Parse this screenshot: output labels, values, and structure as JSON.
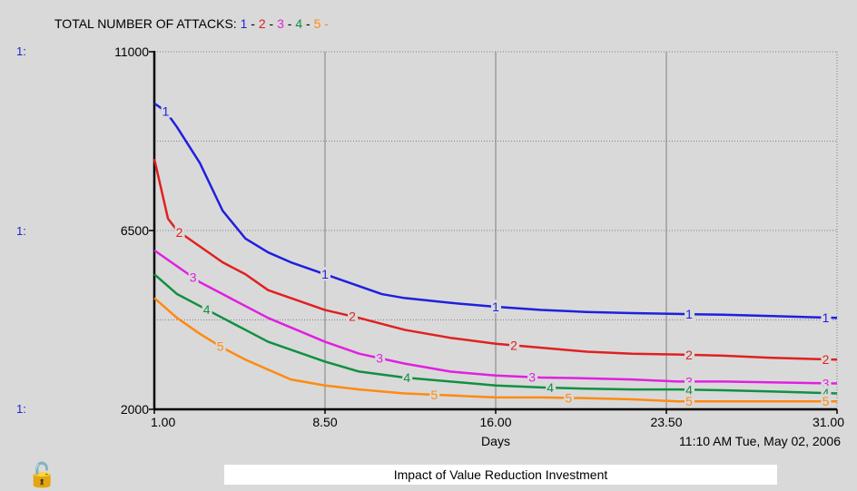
{
  "chart_data": {
    "type": "line",
    "title_label": "TOTAL NUMBER OF ATTACKS:",
    "legend_markers": [
      "1",
      "2",
      "3",
      "4",
      "5"
    ],
    "xlabel": "Days",
    "timestamp": "11:10 AM  Tue, May 02, 2006",
    "caption": "Impact of Value Reduction Investment",
    "axis_prefix": "1:",
    "xlim": [
      1,
      31
    ],
    "ylim": [
      2000,
      11000
    ],
    "x_ticks": [
      "1.00",
      "8.50",
      "16.00",
      "23.50",
      "31.00"
    ],
    "y_ticks": [
      "11000",
      "6500",
      "2000"
    ],
    "grid": true,
    "series": [
      {
        "marker": "1",
        "color": "#1f1fe0",
        "x": [
          1,
          1.5,
          2,
          3,
          4,
          5,
          6,
          7,
          8.5,
          10,
          11,
          12,
          14,
          16,
          18,
          20,
          22,
          24,
          26,
          28,
          31
        ],
        "y": [
          9700,
          9500,
          9100,
          8200,
          7000,
          6300,
          5950,
          5700,
          5400,
          5100,
          4900,
          4800,
          4680,
          4580,
          4500,
          4450,
          4420,
          4400,
          4380,
          4350,
          4300
        ]
      },
      {
        "marker": "2",
        "color": "#e02020",
        "x": [
          1,
          1.6,
          2,
          3,
          4,
          5,
          6,
          8.5,
          10,
          12,
          14,
          16,
          18,
          20,
          22,
          24,
          26,
          28,
          31
        ],
        "y": [
          8300,
          6800,
          6500,
          6100,
          5700,
          5400,
          5000,
          4500,
          4300,
          4000,
          3800,
          3650,
          3550,
          3450,
          3400,
          3380,
          3350,
          3300,
          3250
        ]
      },
      {
        "marker": "3",
        "color": "#e020e0",
        "x": [
          1,
          2,
          3,
          4,
          5,
          6,
          8.5,
          10,
          12,
          14,
          16,
          18,
          20,
          22,
          24,
          26,
          28,
          31
        ],
        "y": [
          6000,
          5600,
          5200,
          4900,
          4600,
          4300,
          3700,
          3400,
          3150,
          2950,
          2850,
          2800,
          2780,
          2750,
          2700,
          2700,
          2680,
          2650
        ]
      },
      {
        "marker": "4",
        "color": "#109040",
        "x": [
          1,
          2,
          3,
          4,
          5,
          6,
          8.5,
          10,
          12,
          14,
          16,
          18,
          20,
          22,
          24,
          26,
          28,
          31
        ],
        "y": [
          5400,
          4900,
          4600,
          4300,
          4000,
          3700,
          3200,
          2950,
          2800,
          2700,
          2600,
          2550,
          2520,
          2500,
          2500,
          2480,
          2450,
          2400
        ]
      },
      {
        "marker": "5",
        "color": "#ff8a10",
        "x": [
          1,
          2,
          3,
          4,
          5,
          6,
          7,
          8.5,
          10,
          12,
          14,
          16,
          18,
          20,
          22,
          24,
          26,
          28,
          31
        ],
        "y": [
          4800,
          4300,
          3900,
          3550,
          3250,
          3000,
          2750,
          2600,
          2500,
          2400,
          2350,
          2300,
          2300,
          2280,
          2250,
          2200,
          2200,
          2200,
          2200
        ]
      }
    ]
  }
}
